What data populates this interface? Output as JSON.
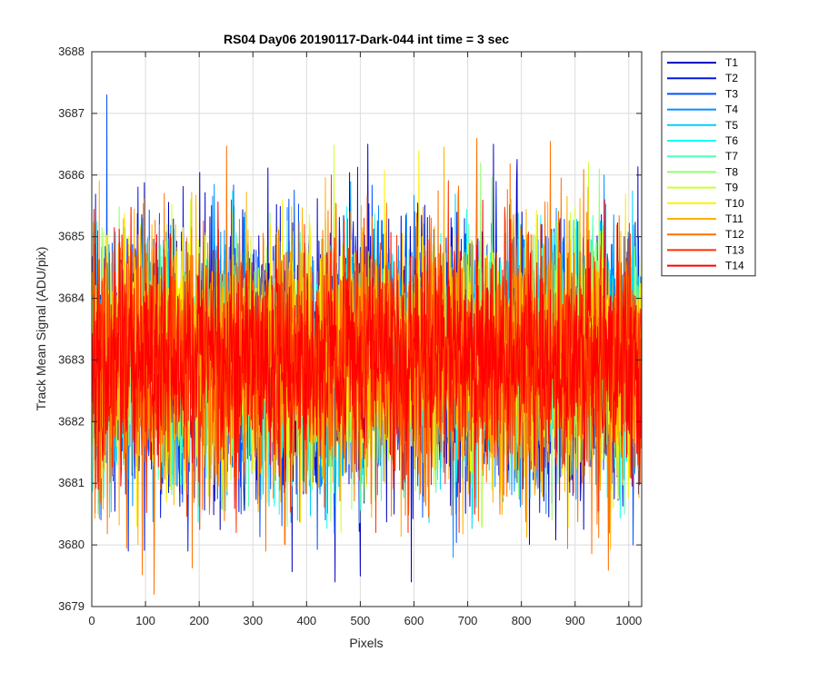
{
  "chart_data": {
    "type": "line",
    "title": "RS04 Day06 20190117-Dark-044 int time = 3 sec",
    "xlabel": "Pixels",
    "ylabel": "Track Mean Signal (ADU/pix)",
    "xlim": [
      0,
      1024
    ],
    "ylim": [
      3679,
      3688
    ],
    "x_ticks": [
      0,
      100,
      200,
      300,
      400,
      500,
      600,
      700,
      800,
      900,
      1000
    ],
    "y_ticks": [
      3679,
      3680,
      3681,
      3682,
      3683,
      3684,
      3685,
      3686,
      3687,
      3688
    ],
    "grid": true,
    "legend_position": "outside-top-right",
    "x_range_samples": [
      1,
      1024
    ],
    "series": [
      {
        "name": "T1",
        "color": "#0000bf",
        "mean": 3683.0,
        "min": 3679.4,
        "max": 3686.5
      },
      {
        "name": "T2",
        "color": "#0018e0",
        "mean": 3683.0,
        "min": 3679.9,
        "max": 3686.3
      },
      {
        "name": "T3",
        "color": "#0050ff",
        "mean": 3683.0,
        "min": 3679.9,
        "max": 3687.3
      },
      {
        "name": "T4",
        "color": "#0090ff",
        "mean": 3683.0,
        "min": 3679.8,
        "max": 3686.0
      },
      {
        "name": "T5",
        "color": "#00d0ff",
        "mean": 3683.0,
        "min": 3679.8,
        "max": 3686.0
      },
      {
        "name": "T6",
        "color": "#10ffef",
        "mean": 3683.0,
        "min": 3680.2,
        "max": 3686.4
      },
      {
        "name": "T7",
        "color": "#50ffaf",
        "mean": 3683.0,
        "min": 3680.5,
        "max": 3686.8
      },
      {
        "name": "T8",
        "color": "#90ff6f",
        "mean": 3683.0,
        "min": 3680.3,
        "max": 3686.6
      },
      {
        "name": "T9",
        "color": "#cfff30",
        "mean": 3683.0,
        "min": 3680.2,
        "max": 3686.6
      },
      {
        "name": "T10",
        "color": "#ffef00",
        "mean": 3683.0,
        "min": 3680.2,
        "max": 3686.6
      },
      {
        "name": "T11",
        "color": "#ffb000",
        "mean": 3683.0,
        "min": 3679.9,
        "max": 3686.5
      },
      {
        "name": "T12",
        "color": "#ff7000",
        "mean": 3683.0,
        "min": 3679.2,
        "max": 3686.6
      },
      {
        "name": "T13",
        "color": "#ff3000",
        "mean": 3683.0,
        "min": 3680.2,
        "max": 3686.0
      },
      {
        "name": "T14",
        "color": "#ff0000",
        "mean": 3683.0,
        "min": 3680.5,
        "max": 3685.6
      }
    ]
  }
}
